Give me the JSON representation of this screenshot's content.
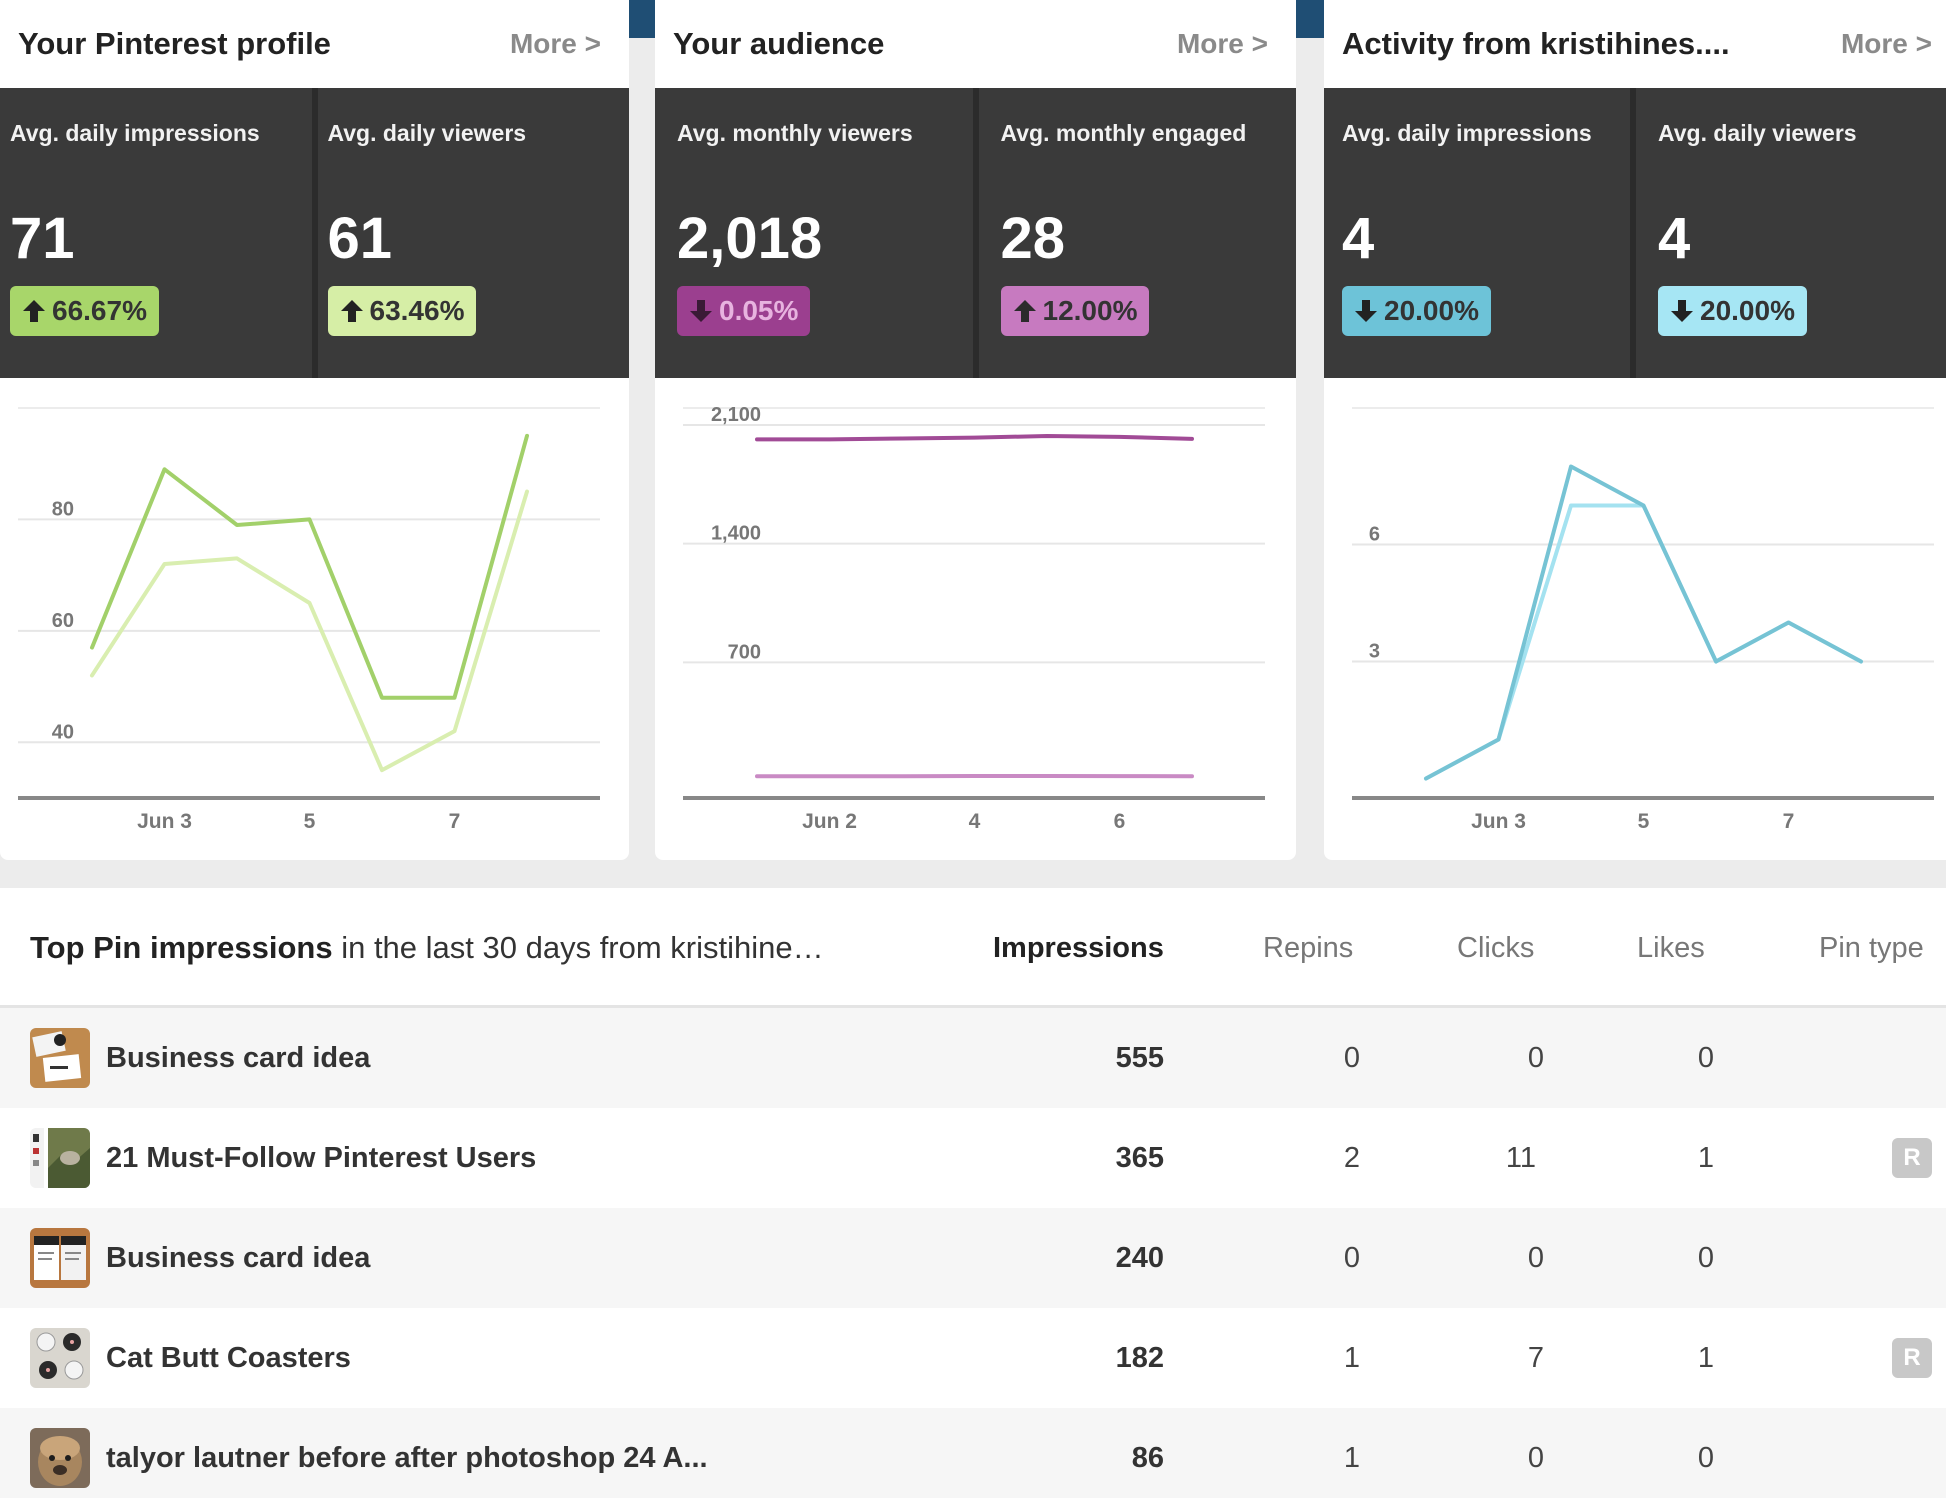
{
  "cards": [
    {
      "title": "Your Pinterest profile",
      "more": "More >",
      "stats": [
        {
          "label": "Avg. daily impressions",
          "value": "71",
          "change": "66.67%",
          "direction": "up",
          "badge_color": "#a8d66a"
        },
        {
          "label": "Avg. daily viewers",
          "value": "61",
          "change": "63.46%",
          "direction": "up",
          "badge_color": "#d6eea6"
        }
      ],
      "chart_data": {
        "type": "line",
        "y_ticks": [
          40,
          60,
          80
        ],
        "ylim": [
          30,
          100
        ],
        "x_tick_labels": [
          "Jun 3",
          "5",
          "7"
        ],
        "x_tick_index": [
          1,
          3,
          5
        ],
        "series": [
          {
            "name": "Avg. daily impressions",
            "color": "#a2d06a",
            "values": [
              57,
              89,
              79,
              80,
              48,
              48,
              95
            ]
          },
          {
            "name": "Avg. daily viewers",
            "color": "#d9eeb0",
            "values": [
              52,
              72,
              73,
              65,
              35,
              42,
              85
            ]
          }
        ]
      }
    },
    {
      "title": "Your audience",
      "more": "More >",
      "stats": [
        {
          "label": "Avg. monthly viewers",
          "value": "2,018",
          "change": "0.05%",
          "direction": "down",
          "badge_color": "#9b3f8f"
        },
        {
          "label": "Avg. monthly engaged",
          "value": "28",
          "change": "12.00%",
          "direction": "up",
          "badge_color": "#c77ac0"
        }
      ],
      "chart_data": {
        "type": "line",
        "y_ticks": [
          700,
          1400,
          2100
        ],
        "y_tick_labels": [
          "700",
          "1,400",
          "2,100"
        ],
        "ylim": [
          -100,
          2200
        ],
        "x_tick_labels": [
          "Jun 2",
          "4",
          "6"
        ],
        "x_tick_index": [
          1,
          3,
          5
        ],
        "series": [
          {
            "name": "Avg. monthly viewers",
            "color": "#a14b96",
            "values": [
              2015,
              2015,
              2020,
              2025,
              2035,
              2030,
              2018
            ]
          },
          {
            "name": "Avg. monthly engaged",
            "color": "#c98ac4",
            "values": [
              28,
              28,
              28,
              30,
              30,
              29,
              28
            ]
          }
        ]
      }
    },
    {
      "title": "Activity from kristihines....",
      "more": "More >",
      "stats": [
        {
          "label": "Avg. daily impressions",
          "value": "4",
          "change": "20.00%",
          "direction": "down",
          "badge_color": "#6dc3d8"
        },
        {
          "label": "Avg. daily viewers",
          "value": "4",
          "change": "20.00%",
          "direction": "down",
          "badge_color": "#a6e6f4"
        }
      ],
      "chart_data": {
        "type": "line",
        "y_ticks": [
          3,
          6
        ],
        "ylim": [
          -0.5,
          9.5
        ],
        "x_tick_labels": [
          "Jun 3",
          "5",
          "7"
        ],
        "x_tick_index": [
          1,
          3,
          5
        ],
        "series": [
          {
            "name": "Avg. daily impressions",
            "color": "#76c3d4",
            "values": [
              0,
              1,
              8,
              7,
              3,
              4,
              3
            ]
          },
          {
            "name": "Avg. daily viewers",
            "color": "#a4e2f0",
            "values": [
              0,
              1,
              7,
              7,
              3,
              4,
              3
            ]
          }
        ]
      }
    }
  ],
  "top_pins": {
    "title_bold": "Top Pin impressions",
    "title_rest": " in the last 30 days from kristihine…",
    "columns": {
      "impressions": "Impressions",
      "repins": "Repins",
      "clicks": "Clicks",
      "likes": "Likes",
      "pin_type": "Pin type"
    },
    "rows": [
      {
        "name": "Business card idea",
        "impressions": "555",
        "repins": "0",
        "clicks": "0",
        "likes": "0",
        "pin_type": ""
      },
      {
        "name": "21 Must-Follow Pinterest Users",
        "impressions": "365",
        "repins": "2",
        "clicks": "11",
        "likes": "1",
        "pin_type": "R"
      },
      {
        "name": "Business card idea",
        "impressions": "240",
        "repins": "0",
        "clicks": "0",
        "likes": "0",
        "pin_type": ""
      },
      {
        "name": "Cat Butt Coasters",
        "impressions": "182",
        "repins": "1",
        "clicks": "7",
        "likes": "1",
        "pin_type": "R"
      },
      {
        "name": "talyor lautner before after photoshop 24 A...",
        "impressions": "86",
        "repins": "1",
        "clicks": "0",
        "likes": "0",
        "pin_type": ""
      }
    ]
  }
}
